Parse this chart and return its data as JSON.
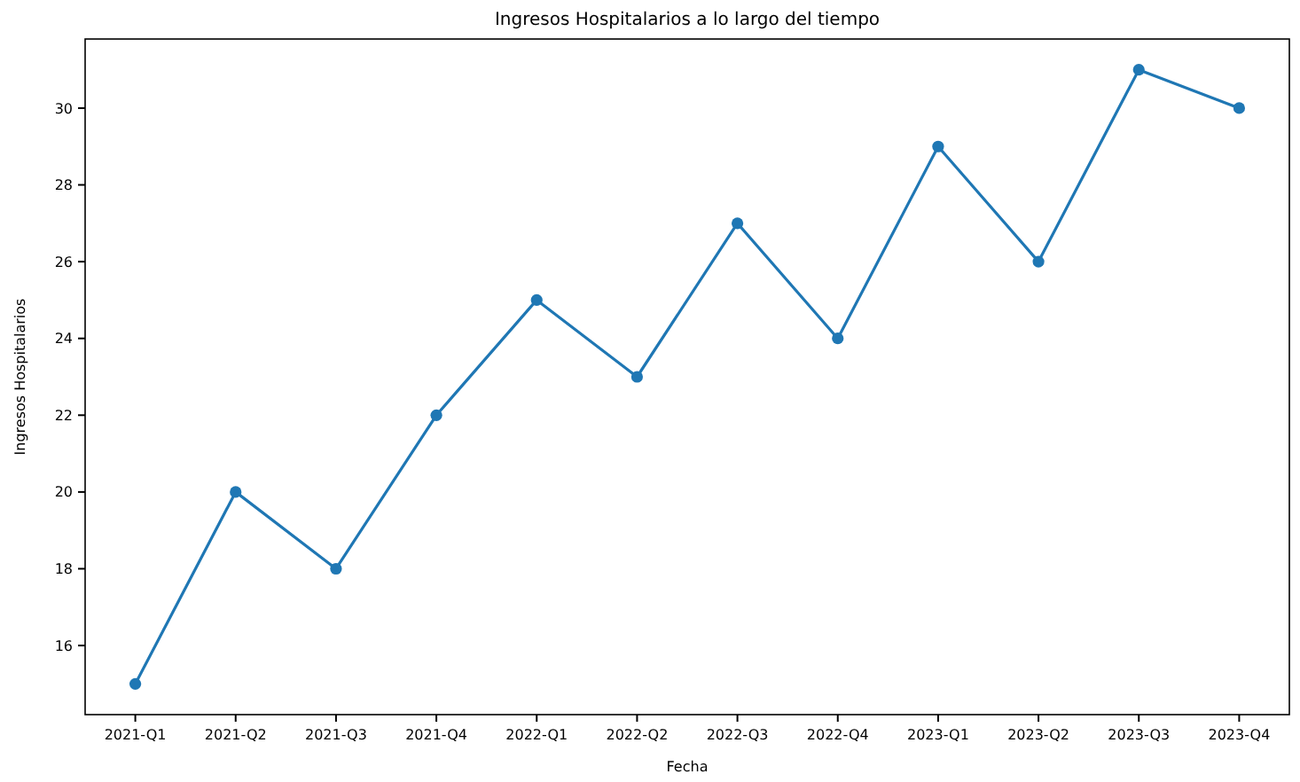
{
  "chart_data": {
    "type": "line",
    "title": "Ingresos Hospitalarios a lo largo del tiempo",
    "xlabel": "Fecha",
    "ylabel": "Ingresos Hospitalarios",
    "categories": [
      "2021-Q1",
      "2021-Q2",
      "2021-Q3",
      "2021-Q4",
      "2022-Q1",
      "2022-Q2",
      "2022-Q3",
      "2022-Q4",
      "2023-Q1",
      "2023-Q2",
      "2023-Q3",
      "2023-Q4"
    ],
    "series": [
      {
        "color": "#1f77b4",
        "values": [
          15,
          20,
          18,
          22,
          25,
          23,
          27,
          24,
          29,
          26,
          31,
          30
        ]
      }
    ],
    "ylim": [
      14.2,
      31.8
    ],
    "yticks": [
      16,
      18,
      20,
      22,
      24,
      26,
      28,
      30
    ],
    "marker": "circle",
    "line_style": "solid",
    "grid": false
  }
}
